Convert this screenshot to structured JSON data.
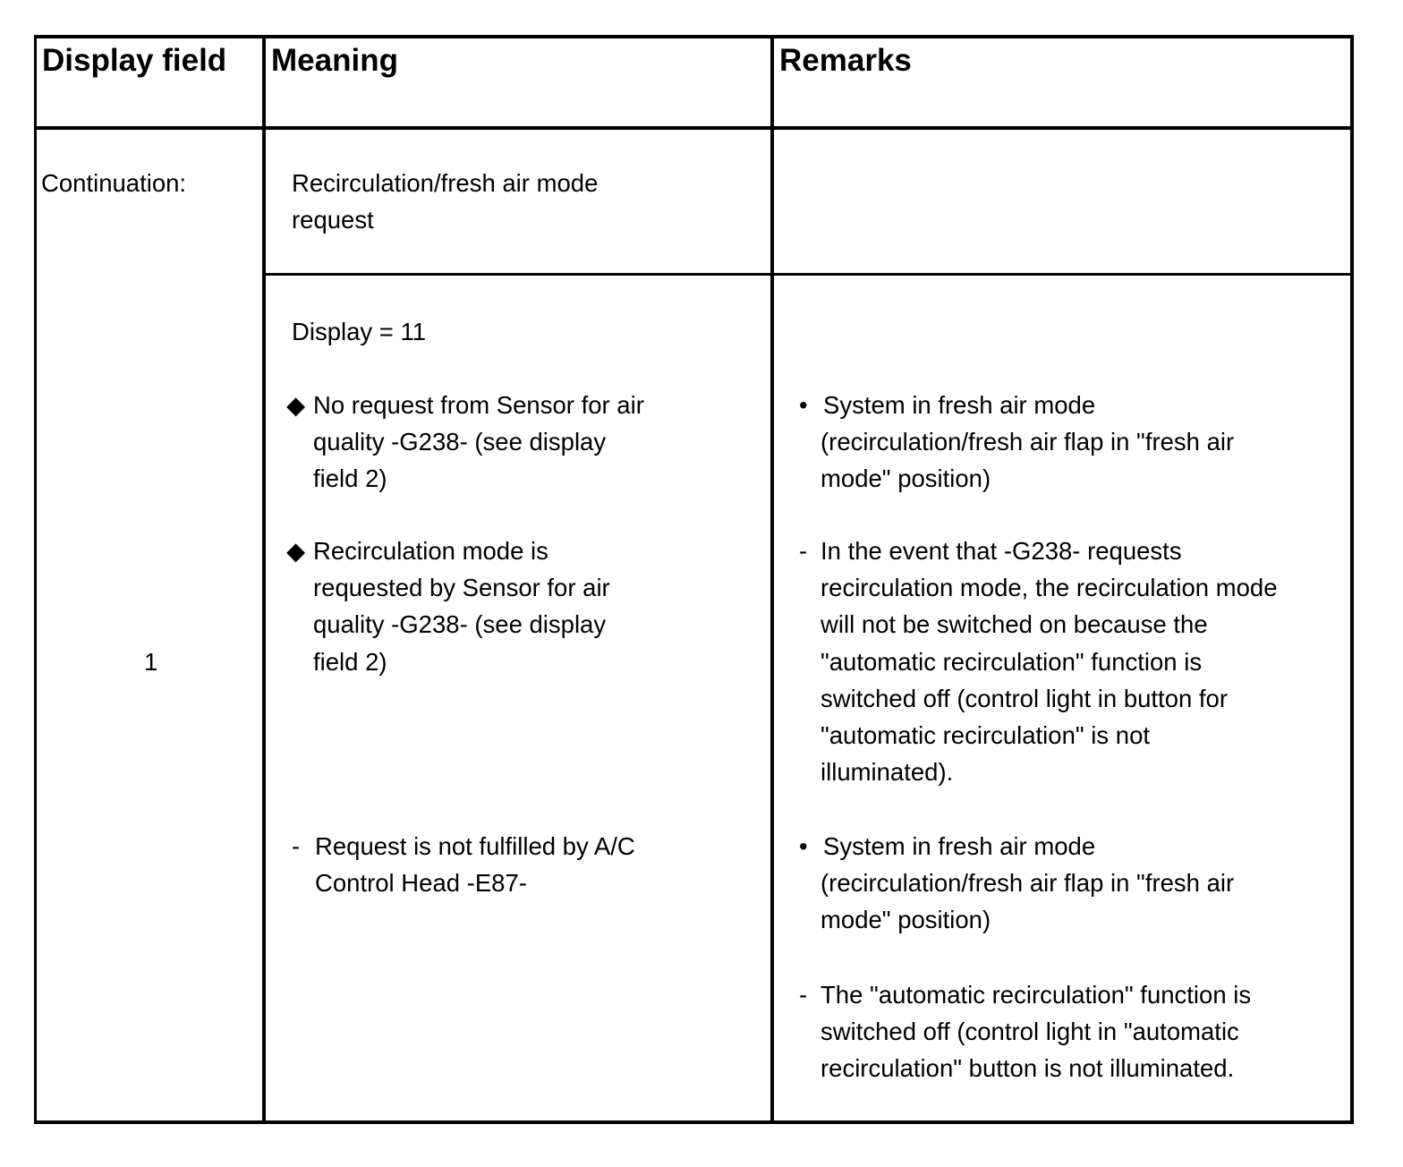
{
  "headers": {
    "display_field": "Display field",
    "meaning": "Meaning",
    "remarks": "Remarks"
  },
  "continuation_label": "Continuation:",
  "display_field_value": "1",
  "meaning_title": [
    "Recirculation/fresh air mode",
    "request"
  ],
  "display_value": "Display = 11",
  "meaning_items": [
    {
      "marker": "diamond",
      "lines": [
        "No request from Sensor for air",
        "quality -G238- (see display",
        "field 2)"
      ]
    },
    {
      "marker": "diamond",
      "lines": [
        "Recirculation mode is",
        "requested by Sensor for air",
        "quality -G238- (see display",
        "field 2)"
      ]
    },
    {
      "marker": "-",
      "lines": [
        "Request is not fulfilled by A/C",
        "Control Head -E87-"
      ]
    }
  ],
  "remarks_items": [
    {
      "marker": "•",
      "lines": [
        "System in fresh air mode",
        "(recirculation/fresh air flap in \"fresh air",
        "mode\" position)"
      ]
    },
    {
      "marker": "-",
      "lines": [
        "In the event that -G238- requests",
        "recirculation mode, the recirculation mode",
        "will not be switched on because the",
        "\"automatic recirculation\" function is",
        "switched off (control light in button for",
        "\"automatic recirculation\" is not",
        "illuminated)."
      ]
    },
    {
      "marker": "•",
      "lines": [
        "System in fresh air mode",
        "(recirculation/fresh air flap in \"fresh air",
        "mode\" position)"
      ]
    },
    {
      "marker": "-",
      "lines": [
        "The \"automatic recirculation\" function is",
        "switched off (control light in \"automatic",
        "recirculation\" button is not illuminated."
      ]
    }
  ]
}
